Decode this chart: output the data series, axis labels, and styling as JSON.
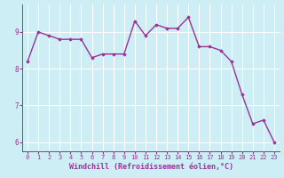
{
  "x": [
    0,
    1,
    2,
    3,
    4,
    5,
    6,
    7,
    8,
    9,
    10,
    11,
    12,
    13,
    14,
    15,
    16,
    17,
    18,
    19,
    20,
    21,
    22,
    23
  ],
  "y": [
    8.2,
    9.0,
    8.9,
    8.8,
    8.8,
    8.8,
    8.3,
    8.4,
    8.4,
    8.4,
    9.3,
    8.9,
    9.2,
    9.1,
    9.1,
    9.4,
    8.6,
    8.6,
    8.5,
    8.2,
    7.3,
    6.5,
    6.6,
    6.0
  ],
  "line_color": "#993399",
  "marker": "D",
  "marker_size": 1.8,
  "line_width": 1.0,
  "xlabel": "Windchill (Refroidissement éolien,°C)",
  "ylabel": "",
  "title": "",
  "xlim": [
    -0.5,
    23.5
  ],
  "ylim": [
    5.75,
    9.75
  ],
  "yticks": [
    6,
    7,
    8,
    9
  ],
  "xticks": [
    0,
    1,
    2,
    3,
    4,
    5,
    6,
    7,
    8,
    9,
    10,
    11,
    12,
    13,
    14,
    15,
    16,
    17,
    18,
    19,
    20,
    21,
    22,
    23
  ],
  "bg_color": "#cdeef4",
  "grid_color": "#ffffff",
  "tick_color": "#993399",
  "label_color": "#993399",
  "tick_fontsize": 5.0,
  "xlabel_fontsize": 6.0
}
